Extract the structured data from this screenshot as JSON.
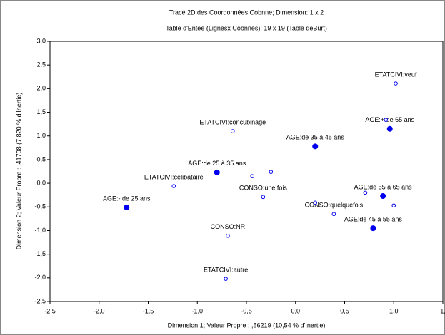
{
  "chart_data": {
    "type": "scatter",
    "title": "Tracé 2D des Coordonnées Cobnne; Dimension:  1 x 2",
    "subtitle": "Table d'Entée (Lignesx Cobnnes): 19 x 19 (Table deBurt)",
    "x_label": "Dimension 1; Valeur Propre : ,56219 (10,54 % d'Inertie)",
    "y_label": "Dimension 2; Valeur Propre : ,41708 (7,820 % d'Inertie)",
    "xlim": [
      -2.5,
      1.5
    ],
    "xticks": [
      {
        "value": -2.5,
        "label": "-2,5"
      },
      {
        "value": -2,
        "label": "-2,0"
      },
      {
        "value": -1.5,
        "label": "-1,5"
      },
      {
        "value": -1,
        "label": "-1,0"
      },
      {
        "value": -0.5,
        "label": "-0,5"
      },
      {
        "value": 0,
        "label": "0,0"
      },
      {
        "value": 0.5,
        "label": "0,5"
      },
      {
        "value": 1,
        "label": "1,0"
      },
      {
        "value": 1.5,
        "label": "1,"
      }
    ],
    "ylim": [
      -2.5,
      3
    ],
    "yticks": [
      {
        "value": -2.5,
        "label": "-2,5"
      },
      {
        "value": -2,
        "label": "-2,0"
      },
      {
        "value": -1.5,
        "label": "-1,5"
      },
      {
        "value": -1,
        "label": "-1,0"
      },
      {
        "value": -0.5,
        "label": "-0,5"
      },
      {
        "value": 0,
        "label": "0,0"
      },
      {
        "value": 0.5,
        "label": "0,5"
      },
      {
        "value": 1,
        "label": "1,0"
      },
      {
        "value": 1.5,
        "label": "1,5"
      },
      {
        "value": 2,
        "label": "2,0"
      },
      {
        "value": 2.5,
        "label": "2,5"
      },
      {
        "value": 3,
        "label": "3,0"
      }
    ],
    "grid": false,
    "series": [
      {
        "color": "#0000ee",
        "filled": true,
        "x": [
          -1.72,
          -0.8,
          0.2,
          0.96,
          0.89,
          0.79
        ],
        "values": [
          -0.51,
          0.23,
          0.78,
          1.15,
          -0.27,
          -0.95
        ],
        "labels": [
          "AGE:- de 25 ans",
          "AGE:de 25 à 35 ans",
          "AGE:de 35 à 45 ans",
          "AGE:+ de 65 ans",
          "AGE:de 55 à 65 ans",
          "AGE:de 45 à 55 ans"
        ]
      },
      {
        "color": "#0000ee",
        "filled": false,
        "x": [
          1.02,
          -0.64,
          -1.24,
          -0.71,
          -0.33,
          -0.69,
          0.39,
          -0.44,
          -0.25,
          0.2,
          0.71,
          1.0,
          0.92
        ],
        "values": [
          2.11,
          1.1,
          -0.06,
          -2.02,
          -0.29,
          -1.11,
          -0.65,
          0.15,
          0.24,
          -0.41,
          -0.2,
          -0.47,
          1.34
        ],
        "labels": [
          "ETATCIVI:veuf",
          "ETATCIVI:concubinage",
          "ETATCIVI:célibataire",
          "ETATCIVI:autre",
          "CONSO:une fois",
          "CONSO:NR",
          "CONSO:quelquefois",
          null,
          null,
          null,
          null,
          null,
          null
        ]
      }
    ]
  }
}
